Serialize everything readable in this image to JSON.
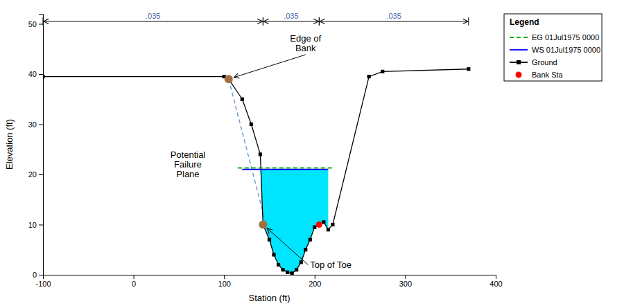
{
  "chart_data": {
    "type": "line",
    "xlabel": "Station (ft)",
    "ylabel": "Elevation (ft)",
    "xlim": [
      -100,
      400
    ],
    "ylim": [
      0,
      52
    ],
    "xticks": [
      -100,
      0,
      100,
      200,
      300,
      400
    ],
    "yticks": [
      0,
      10,
      20,
      30,
      40,
      50
    ],
    "grid": false,
    "legend": "upper right",
    "legend_title": "Legend",
    "series": [
      {
        "name": "EG 01Jul1975 0000",
        "color": "#00aa00",
        "line_style": "dashed",
        "x": [
          115.0,
          220.0
        ],
        "values": [
          21.3,
          21.3
        ]
      },
      {
        "name": "WS 01Jul1975 0000",
        "color": "#0000ff",
        "line_style": "solid",
        "x": [
          120.0,
          215.0
        ],
        "values": [
          21.0,
          21.0
        ]
      },
      {
        "name": "Ground",
        "color": "#000000",
        "line_style": "solid",
        "marker": "square",
        "x": [
          -100,
          100,
          105,
          120,
          130,
          140,
          143,
          150,
          155,
          160,
          165,
          170,
          175,
          180,
          185,
          190,
          195,
          200,
          205,
          210,
          215,
          220,
          260,
          275,
          370
        ],
        "values": [
          39.5,
          39.5,
          39.0,
          35.0,
          30.0,
          24.0,
          10.0,
          7.0,
          4.0,
          2.0,
          1.0,
          0.5,
          0.3,
          1.0,
          2.5,
          5.0,
          7.0,
          9.5,
          10.0,
          10.5,
          9.0,
          10.0,
          39.5,
          40.5,
          41.0
        ]
      },
      {
        "name": "Bank Sta",
        "type": "scatter",
        "color": "#ff0000",
        "marker": "circle",
        "x": [
          143,
          205
        ],
        "values": [
          10.0,
          10.0
        ]
      }
    ],
    "fill": {
      "color": "#00e5ff",
      "x": [
        120.0,
        120,
        130,
        140,
        143,
        150,
        155,
        160,
        165,
        170,
        175,
        180,
        185,
        190,
        195,
        200,
        205,
        210,
        215,
        215.0,
        120.0
      ],
      "values": [
        21.0,
        21.0,
        21.0,
        21.0,
        10.0,
        7.0,
        4.0,
        2.0,
        1.0,
        0.5,
        0.3,
        1.0,
        2.5,
        5.0,
        7.0,
        9.5,
        10.0,
        10.5,
        9.0,
        21.0,
        21.0
      ]
    },
    "points": [
      {
        "color": "#a07040",
        "marker": "circle",
        "x": [
          105,
          143
        ],
        "values": [
          39.0,
          10.0
        ]
      }
    ],
    "lines": [
      {
        "color": "#6699cc",
        "line_style": "dashed",
        "x": [
          105,
          155
        ],
        "values": [
          39.0,
          4.0
        ]
      }
    ],
    "annotations": [
      {
        "text": "Edge of\nBank",
        "x": 105,
        "y": 39.0,
        "text_x": 190,
        "text_y": 44
      },
      {
        "text": "Top of Toe",
        "x": 143,
        "y": 10.0,
        "text_x": 195,
        "text_y": 2
      },
      {
        "text": "Potential\nFailure\nPlane",
        "text_x": 60,
        "text_y": 22
      }
    ],
    "dimensions": [
      {
        "label": ".035",
        "color": "#4466aa",
        "x": [
          -100,
          143
        ],
        "y": 50.5
      },
      {
        "label": ".035",
        "color": "#4466aa",
        "x": [
          143,
          205
        ],
        "y": 50.5
      },
      {
        "label": ".035",
        "color": "#4466aa",
        "x": [
          205,
          370
        ],
        "y": 50.5
      }
    ]
  }
}
